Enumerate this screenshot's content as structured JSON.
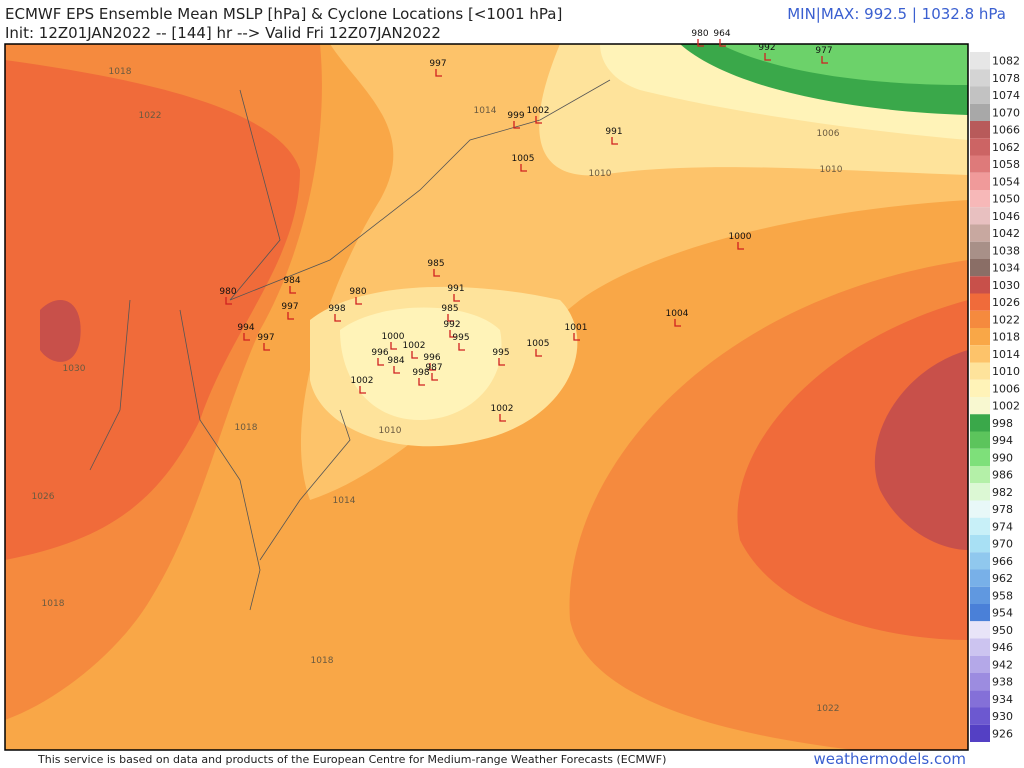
{
  "header": {
    "title": "ECMWF EPS Ensemble Mean MSLP [hPa] & Cyclone Locations [<1001 hPa]",
    "subtitle": "Init: 12Z01JAN2022 -- [144] hr --> Valid Fri 12Z07JAN2022",
    "minmax": "MIN|MAX: 992.5 | 1032.8 hPa"
  },
  "footer": {
    "note": "This service is based on data and products of the European Centre for Medium-range Weather Forecasts (ECMWF)",
    "site": "weathermodels.com"
  },
  "colorbar": {
    "labels": [
      "1082",
      "1078",
      "1074",
      "1070",
      "1066",
      "1062",
      "1058",
      "1054",
      "1050",
      "1046",
      "1042",
      "1038",
      "1034",
      "1030",
      "1026",
      "1022",
      "1018",
      "1014",
      "1010",
      "1006",
      "1002",
      "998",
      "994",
      "990",
      "986",
      "982",
      "978",
      "974",
      "970",
      "966",
      "962",
      "958",
      "954",
      "950",
      "946",
      "942",
      "938",
      "934",
      "930",
      "926"
    ]
  },
  "cyclones": [
    "980",
    "964",
    "992",
    "977",
    "997",
    "999",
    "1002",
    "991",
    "1005",
    "1000",
    "985",
    "991",
    "984",
    "980",
    "997",
    "980",
    "998",
    "994",
    "997",
    "985",
    "992",
    "995",
    "1001",
    "1004",
    "1005",
    "995",
    "1002",
    "996",
    "987",
    "998",
    "984",
    "1000",
    "996",
    "1002",
    "1002"
  ],
  "contours": [
    "1018",
    "1022",
    "1014",
    "1006",
    "1010",
    "1010",
    "1030",
    "1018",
    "1010",
    "1014",
    "1026",
    "1018",
    "1018",
    "1022"
  ]
}
